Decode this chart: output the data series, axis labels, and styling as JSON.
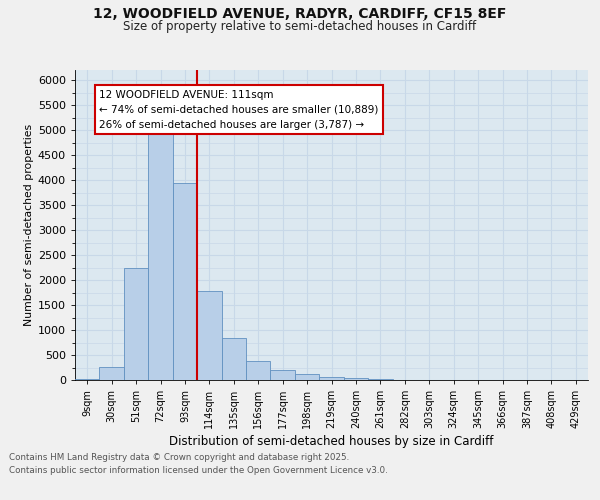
{
  "title1": "12, WOODFIELD AVENUE, RADYR, CARDIFF, CF15 8EF",
  "title2": "Size of property relative to semi-detached houses in Cardiff",
  "xlabel": "Distribution of semi-detached houses by size in Cardiff",
  "ylabel": "Number of semi-detached properties",
  "bin_labels": [
    "9sqm",
    "30sqm",
    "51sqm",
    "72sqm",
    "93sqm",
    "114sqm",
    "135sqm",
    "156sqm",
    "177sqm",
    "198sqm",
    "219sqm",
    "240sqm",
    "261sqm",
    "282sqm",
    "303sqm",
    "324sqm",
    "345sqm",
    "366sqm",
    "387sqm",
    "408sqm",
    "429sqm"
  ],
  "bar_values": [
    30,
    260,
    2250,
    4950,
    3950,
    1780,
    840,
    390,
    200,
    115,
    58,
    38,
    20,
    10,
    5,
    5,
    4,
    2,
    2,
    2,
    2
  ],
  "bar_color": "#b8cfe8",
  "bar_edge_color": "#6090c0",
  "vline_index": 5,
  "vline_color": "#cc0000",
  "annotation_line1": "12 WOODFIELD AVENUE: 111sqm",
  "annotation_line2": "← 74% of semi-detached houses are smaller (10,889)",
  "annotation_line3": "26% of semi-detached houses are larger (3,787) →",
  "annotation_box_fc": "#ffffff",
  "annotation_box_ec": "#cc0000",
  "grid_color": "#c8d8e8",
  "bg_color": "#dce8f0",
  "fig_bg": "#f0f0f0",
  "ylim": [
    0,
    6200
  ],
  "yticks": [
    0,
    500,
    1000,
    1500,
    2000,
    2500,
    3000,
    3500,
    4000,
    4500,
    5000,
    5500,
    6000
  ],
  "footer1": "Contains HM Land Registry data © Crown copyright and database right 2025.",
  "footer2": "Contains public sector information licensed under the Open Government Licence v3.0."
}
